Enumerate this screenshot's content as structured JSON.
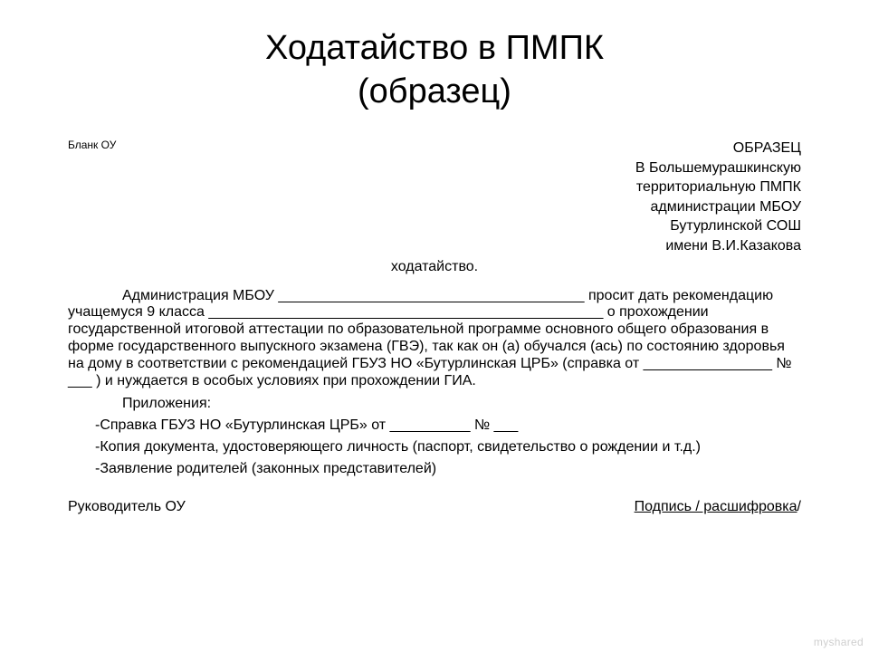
{
  "title_line1": "Ходатайство в ПМПК",
  "title_line2": "(образец)",
  "blank_label": "Бланк ОУ",
  "addressee": {
    "line1": "ОБРАЗЕЦ",
    "line2": "В Большемурашкинскую",
    "line3": "территориальную ПМПК",
    "line4": "администрации МБОУ",
    "line5": "Бутурлинской СОШ",
    "line6": "имени В.И.Казакова"
  },
  "center_word": "ходатайство.",
  "body": "Администрация МБОУ ______________________________________ просит дать рекомендацию учащемуся 9 класса _________________________________________________ о прохождении государственной итоговой аттестации по образовательной программе основного общего образования в форме государственного выпускного экзамена (ГВЭ), так как он (а) обучался (ась) по состоянию здоровья  на дому  в соответствии с рекомендацией ГБУЗ НО «Бутурлинская ЦРБ»  (справка от ________________ № ___ ) и нуждается в особых условиях при прохождении ГИА.",
  "attachments_title": "Приложения:",
  "attachments": {
    "item1": "-Справка ГБУЗ НО «Бутурлинская ЦРБ» от __________ № ___",
    "item2": "-Копия документа, удостоверяющего личность (паспорт, свидетельство о рождении и т.д.)",
    "item3": "-Заявление родителей (законных представителей)"
  },
  "signature": {
    "left": "Руководитель ОУ",
    "right_underlined": "Подпись / расшифровка",
    "right_slash": "/"
  },
  "watermark": "myshared"
}
